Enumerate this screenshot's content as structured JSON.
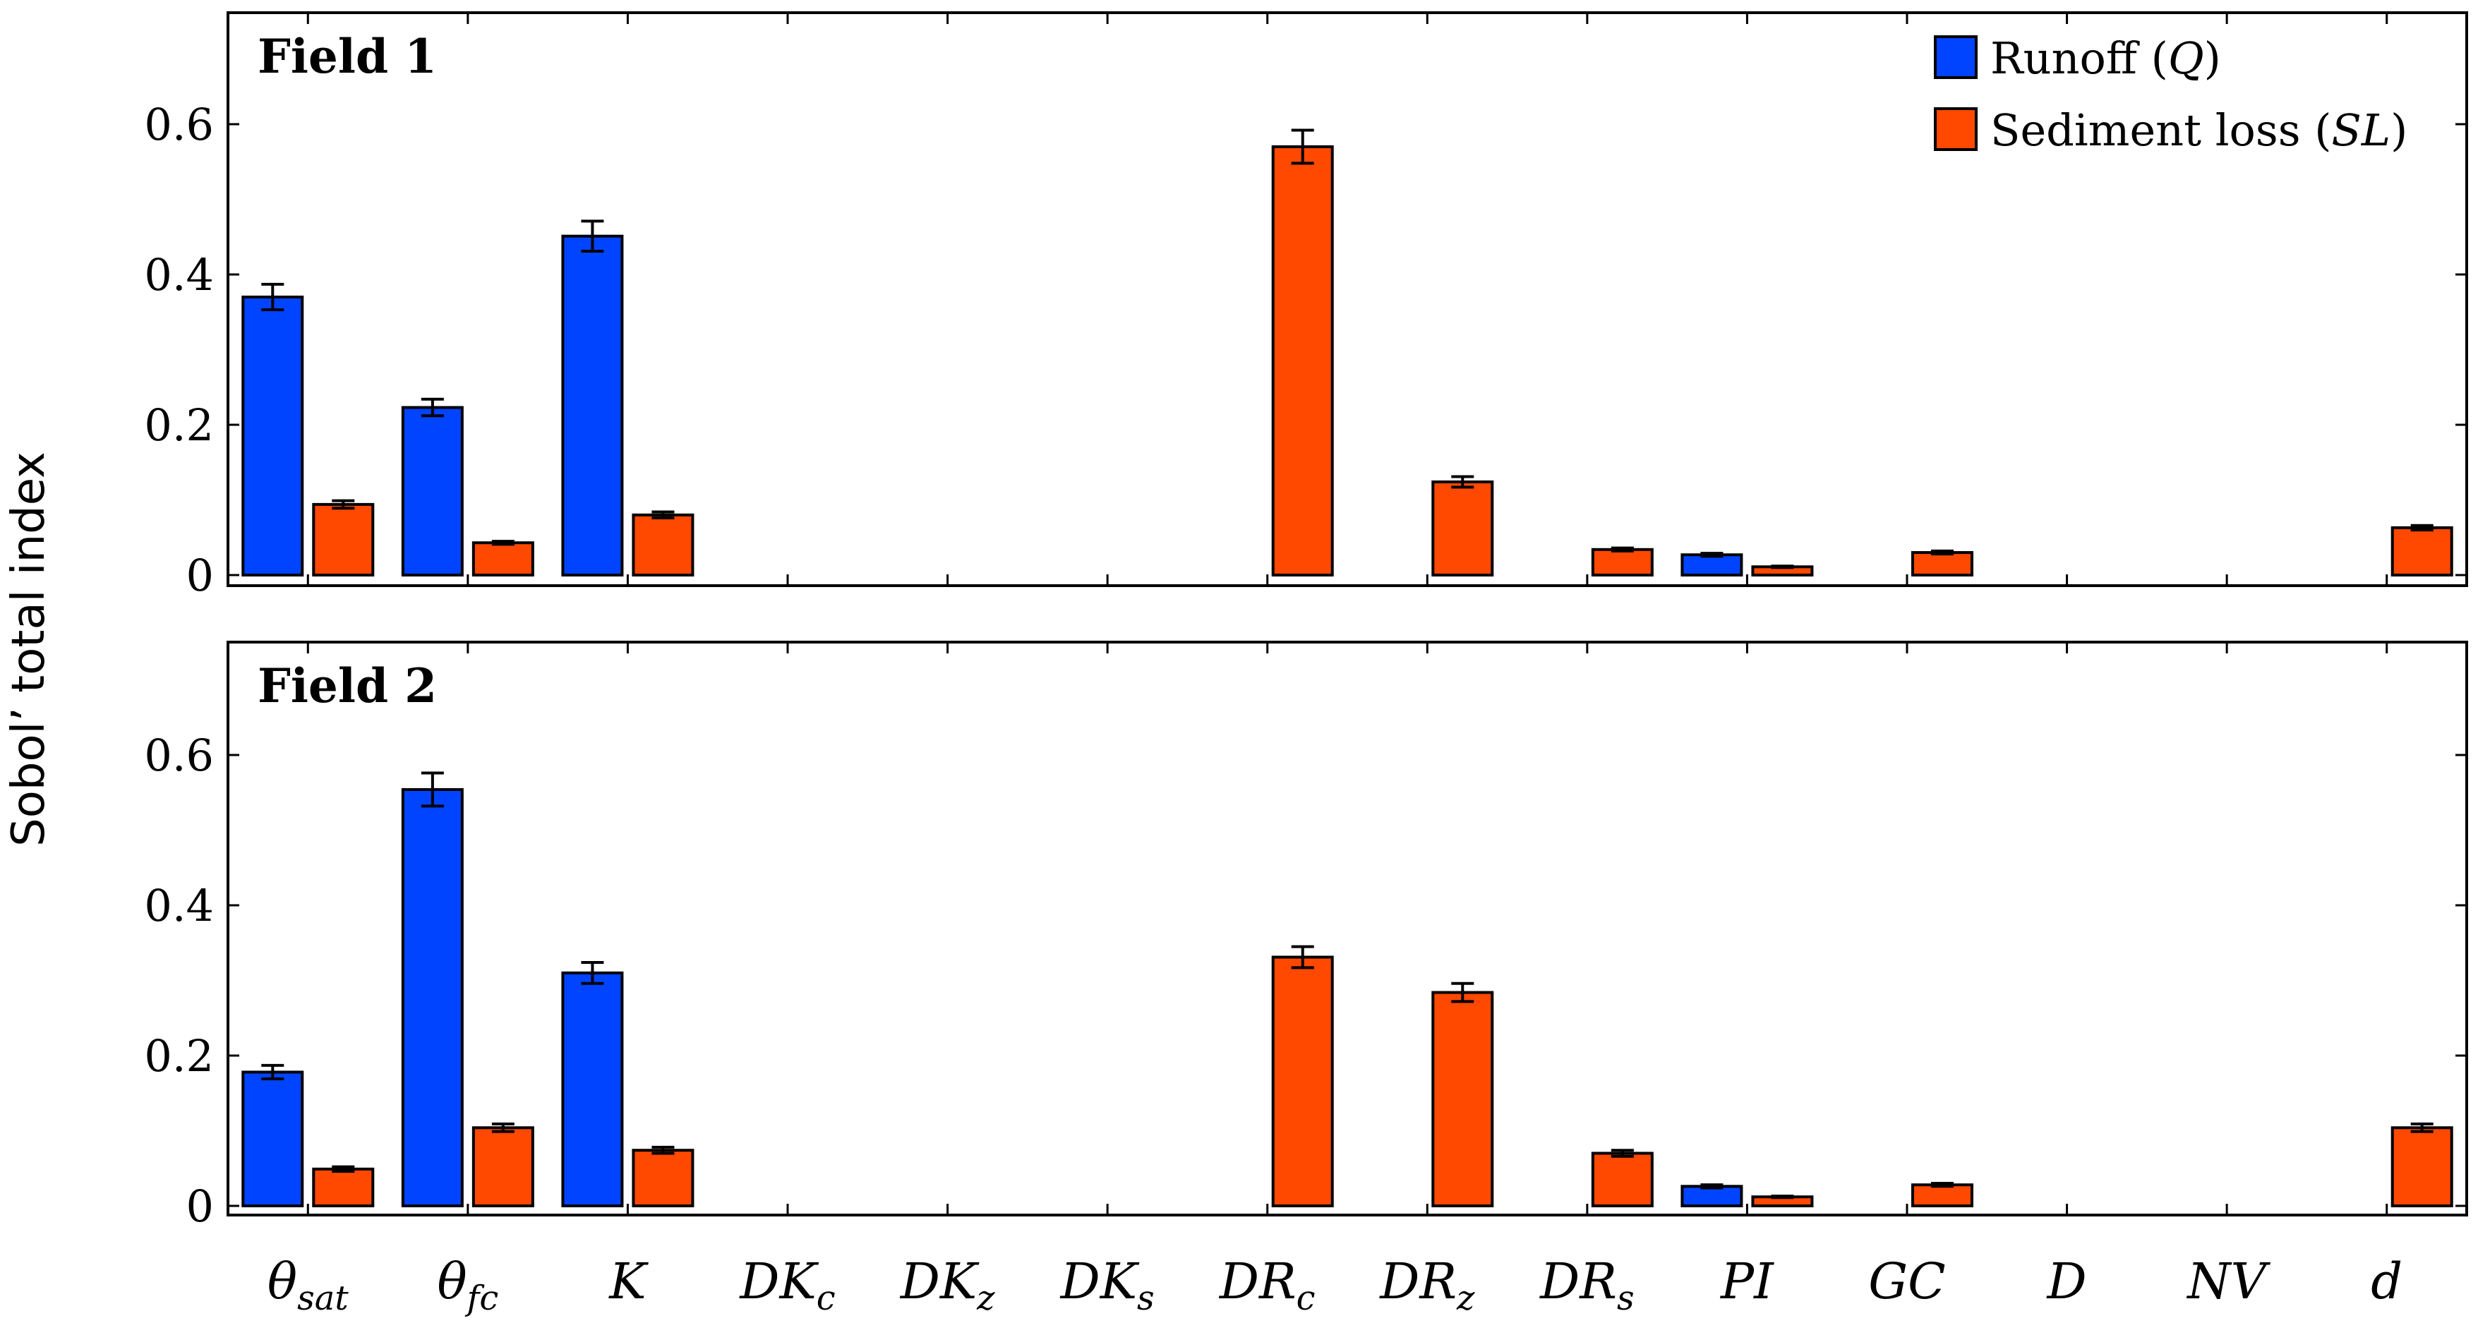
{
  "chart_data": {
    "type": "bar",
    "ylabel": "Sobol’ total index",
    "ylim": [
      0,
      0.75
    ],
    "yticks": [
      "0",
      "0.2",
      "0.4",
      "0.6"
    ],
    "ytick_values": [
      0,
      0.2,
      0.4,
      0.6
    ],
    "categories": [
      {
        "base": "θ",
        "sub": "sat"
      },
      {
        "base": "θ",
        "sub": "fc"
      },
      {
        "base": "K",
        "sub": ""
      },
      {
        "base": "DK",
        "sub": "c"
      },
      {
        "base": "DK",
        "sub": "z"
      },
      {
        "base": "DK",
        "sub": "s"
      },
      {
        "base": "DR",
        "sub": "c"
      },
      {
        "base": "DR",
        "sub": "z"
      },
      {
        "base": "DR",
        "sub": "s"
      },
      {
        "base": "PI",
        "sub": ""
      },
      {
        "base": "GC",
        "sub": ""
      },
      {
        "base": "D",
        "sub": ""
      },
      {
        "base": "NV",
        "sub": ""
      },
      {
        "base": "d",
        "sub": ""
      }
    ],
    "legend": {
      "placement": "top-right",
      "entries": [
        {
          "text": "Runoff (",
          "math": "Q",
          "close": ")",
          "color": "#0044ff"
        },
        {
          "text": "Sediment loss (",
          "math": "SL",
          "close": ")",
          "color": "#ff4800"
        }
      ]
    },
    "panels": [
      {
        "title": "Field 1",
        "series": [
          {
            "name": "Runoff (Q)",
            "color": "#0044ff",
            "values": [
              0.37,
              0.223,
              0.451,
              0,
              0,
              0,
              0,
              0,
              0,
              0.027,
              0,
              0,
              0,
              0
            ],
            "errors": [
              0.017,
              0.011,
              0.02,
              0,
              0,
              0,
              0,
              0,
              0,
              0.002,
              0,
              0,
              0,
              0
            ]
          },
          {
            "name": "Sediment loss (SL)",
            "color": "#ff4800",
            "values": [
              0.094,
              0.043,
              0.08,
              0,
              0,
              0,
              0.57,
              0.124,
              0.034,
              0.011,
              0.03,
              0,
              0,
              0.063
            ],
            "errors": [
              0.005,
              0.002,
              0.004,
              0,
              0,
              0,
              0.022,
              0.007,
              0.002,
              0.001,
              0.002,
              0,
              0,
              0.003
            ]
          }
        ]
      },
      {
        "title": "Field 2",
        "series": [
          {
            "name": "Runoff (Q)",
            "color": "#0044ff",
            "values": [
              0.178,
              0.554,
              0.31,
              0,
              0,
              0,
              0,
              0,
              0,
              0.026,
              0,
              0,
              0,
              0
            ],
            "errors": [
              0.009,
              0.022,
              0.014,
              0,
              0,
              0,
              0,
              0,
              0,
              0.002,
              0,
              0,
              0,
              0
            ]
          },
          {
            "name": "Sediment loss (SL)",
            "color": "#ff4800",
            "values": [
              0.049,
              0.104,
              0.074,
              0,
              0,
              0,
              0.331,
              0.284,
              0.07,
              0.012,
              0.028,
              0,
              0,
              0.104
            ],
            "errors": [
              0.003,
              0.005,
              0.004,
              0,
              0,
              0,
              0.014,
              0.012,
              0.004,
              0.001,
              0.002,
              0,
              0,
              0.005
            ]
          }
        ]
      }
    ]
  }
}
